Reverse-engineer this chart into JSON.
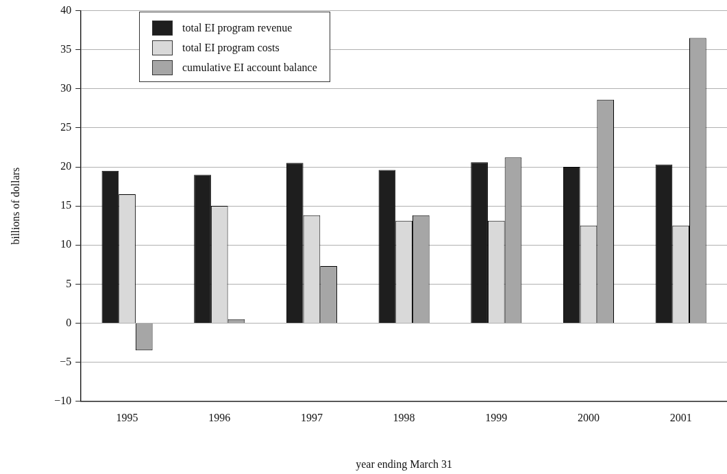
{
  "chart_data": {
    "type": "bar",
    "xlabel": "year ending March 31",
    "ylabel": "billions of dollars",
    "categories": [
      "1995",
      "1996",
      "1997",
      "1998",
      "1999",
      "2000",
      "2001"
    ],
    "series": [
      {
        "name": "total EI program revenue",
        "color": "#1e1e1e",
        "values": [
          19.5,
          19.0,
          20.5,
          19.6,
          20.6,
          20.0,
          20.3
        ]
      },
      {
        "name": "total EI program costs",
        "color": "#d9d9d9",
        "values": [
          16.5,
          15.0,
          13.8,
          13.1,
          13.1,
          12.5,
          12.5
        ]
      },
      {
        "name": "cumulative EI account balance",
        "color": "#a6a6a6",
        "values": [
          -3.5,
          0.5,
          7.3,
          13.8,
          21.2,
          28.6,
          36.5
        ]
      }
    ],
    "ylim": [
      -10,
      40
    ],
    "yticks": [
      {
        "value": -10,
        "label": "−10"
      },
      {
        "value": -5,
        "label": "−5"
      },
      0,
      5,
      10,
      15,
      20,
      25,
      30,
      35,
      40
    ],
    "grid": "y",
    "legend": "top left"
  }
}
